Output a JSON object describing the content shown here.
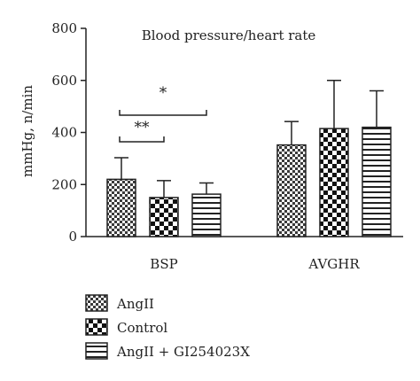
{
  "chart_data": {
    "type": "bar",
    "title": "Blood pressure/heart rate",
    "ylabel": "mmHg, n/min",
    "xlabel": "",
    "ylim": [
      0,
      800
    ],
    "yticks": [
      0,
      200,
      400,
      600,
      800
    ],
    "categories": [
      "BSP",
      "AVGHR"
    ],
    "series": [
      {
        "name": "AngII",
        "pattern": "checker-fine",
        "values": [
          220,
          352
        ],
        "errors": [
          83,
          90
        ]
      },
      {
        "name": "Control",
        "pattern": "checker-coarse",
        "values": [
          150,
          415
        ],
        "errors": [
          65,
          185
        ]
      },
      {
        "name": "AngII + GI254023X",
        "pattern": "horizontal-stripes",
        "values": [
          163,
          420
        ],
        "errors": [
          43,
          140
        ]
      }
    ],
    "significance": [
      {
        "category": "BSP",
        "from_series": 0,
        "to_series": 1,
        "label": "**"
      },
      {
        "category": "BSP",
        "from_series": 0,
        "to_series": 2,
        "label": "*"
      }
    ],
    "legend_position": "bottom-left",
    "grid": false
  }
}
